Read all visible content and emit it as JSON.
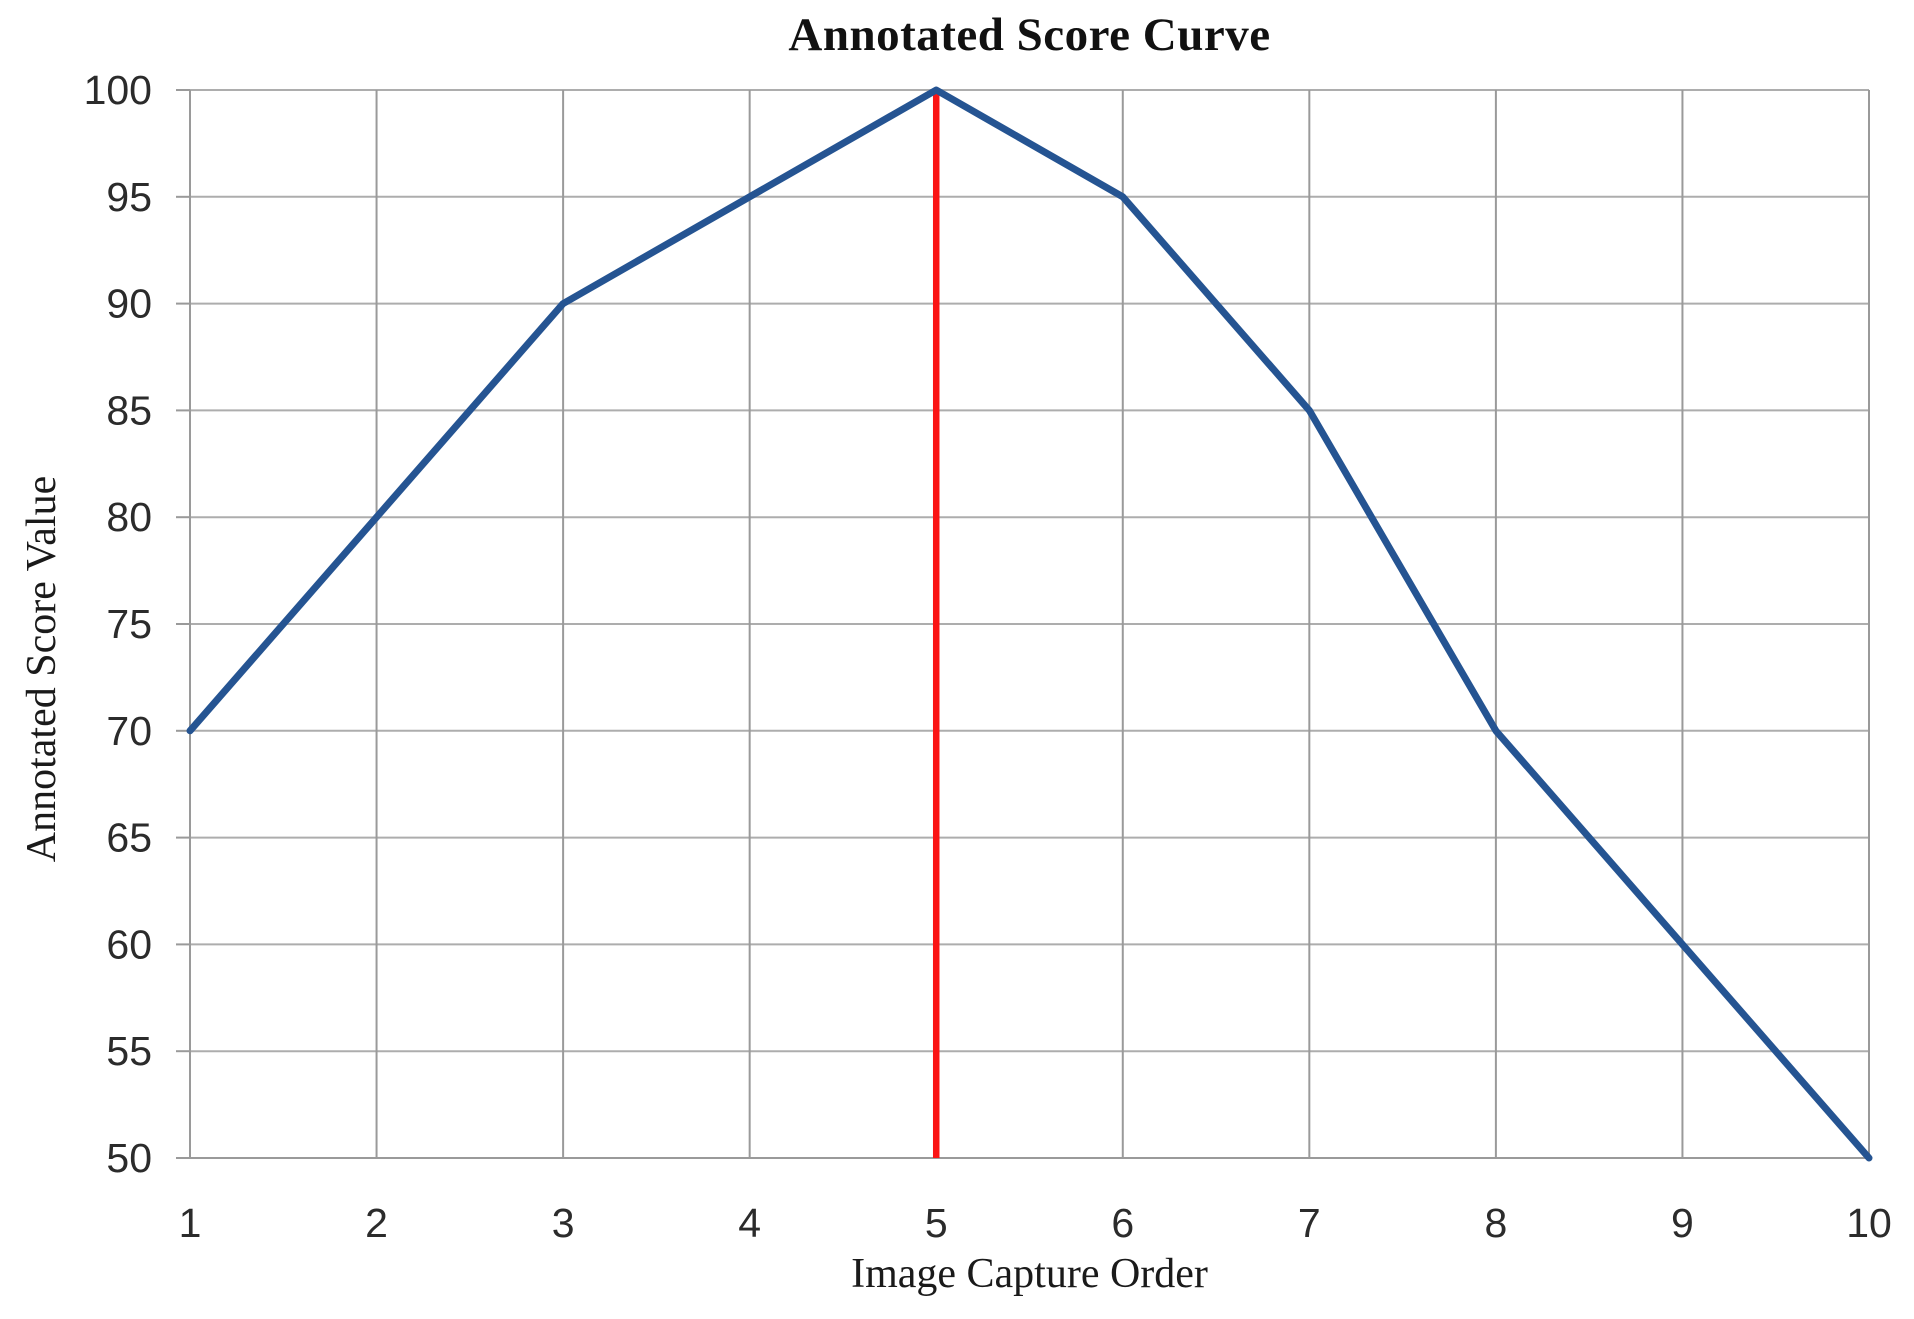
{
  "chart_data": {
    "type": "line",
    "title": "Annotated Score Curve",
    "xlabel": "Image Capture Order",
    "ylabel": "Annotated Score Value",
    "x": [
      1,
      2,
      3,
      4,
      5,
      6,
      7,
      8,
      9,
      10
    ],
    "series": [
      {
        "values": [
          70,
          80,
          90,
          95,
          100,
          95,
          85,
          70,
          60,
          50
        ],
        "color": "#255492"
      }
    ],
    "annotations": [
      {
        "type": "vline",
        "x": 5,
        "y_from": 50,
        "y_to": 100,
        "color": "#FA1414"
      }
    ],
    "xticks": [
      1,
      2,
      3,
      4,
      5,
      6,
      7,
      8,
      9,
      10
    ],
    "yticks": [
      50,
      55,
      60,
      65,
      70,
      75,
      80,
      85,
      90,
      95,
      100
    ],
    "xlim": [
      1,
      10
    ],
    "ylim": [
      50,
      100
    ],
    "grid": "both",
    "gridline_color_horizontal": "#ADADAD",
    "gridline_color_vertical": "#9A9A9A",
    "axis_color": "#9A9A9A",
    "legend": "none",
    "background": "#FFFFFF"
  }
}
